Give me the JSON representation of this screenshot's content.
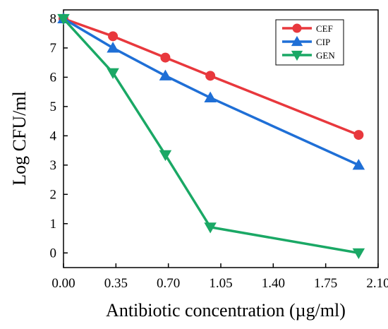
{
  "chart_data": {
    "type": "line",
    "title": "",
    "xlabel": "Antibiotic concentration (µg/ml)",
    "ylabel": "Log CFU/ml",
    "xlim": [
      0,
      2.1
    ],
    "ylim": [
      -0.5,
      8.3
    ],
    "xticks": [
      0,
      0.35,
      0.7,
      1.05,
      1.4,
      1.75,
      2.1
    ],
    "xtick_labels": [
      "0.00",
      "0.35",
      "0.70",
      "1.05",
      "1.40",
      "1.75",
      "2.10"
    ],
    "yticks": [
      0,
      1,
      2,
      3,
      4,
      5,
      6,
      7,
      8
    ],
    "ytick_labels": [
      "0",
      "1",
      "2",
      "3",
      "4",
      "5",
      "6",
      "7",
      "8"
    ],
    "grid": false,
    "legend_position": "top-right",
    "series": [
      {
        "name": "CEF",
        "color": "#e8383d",
        "marker": "circle",
        "x": [
          0,
          0.33,
          0.68,
          0.98,
          1.97
        ],
        "y": [
          8.0,
          7.4,
          6.67,
          6.05,
          4.03
        ]
      },
      {
        "name": "CIP",
        "color": "#1f6fd6",
        "marker": "triangle-up",
        "x": [
          0,
          0.33,
          0.68,
          0.98,
          1.97
        ],
        "y": [
          8.0,
          7.0,
          6.05,
          5.3,
          3.0
        ]
      },
      {
        "name": "GEN",
        "color": "#1aa865",
        "marker": "triangle-down",
        "x": [
          0,
          0.33,
          0.68,
          0.98,
          1.97
        ],
        "y": [
          8.0,
          6.15,
          3.35,
          0.88,
          0.0
        ]
      }
    ]
  }
}
